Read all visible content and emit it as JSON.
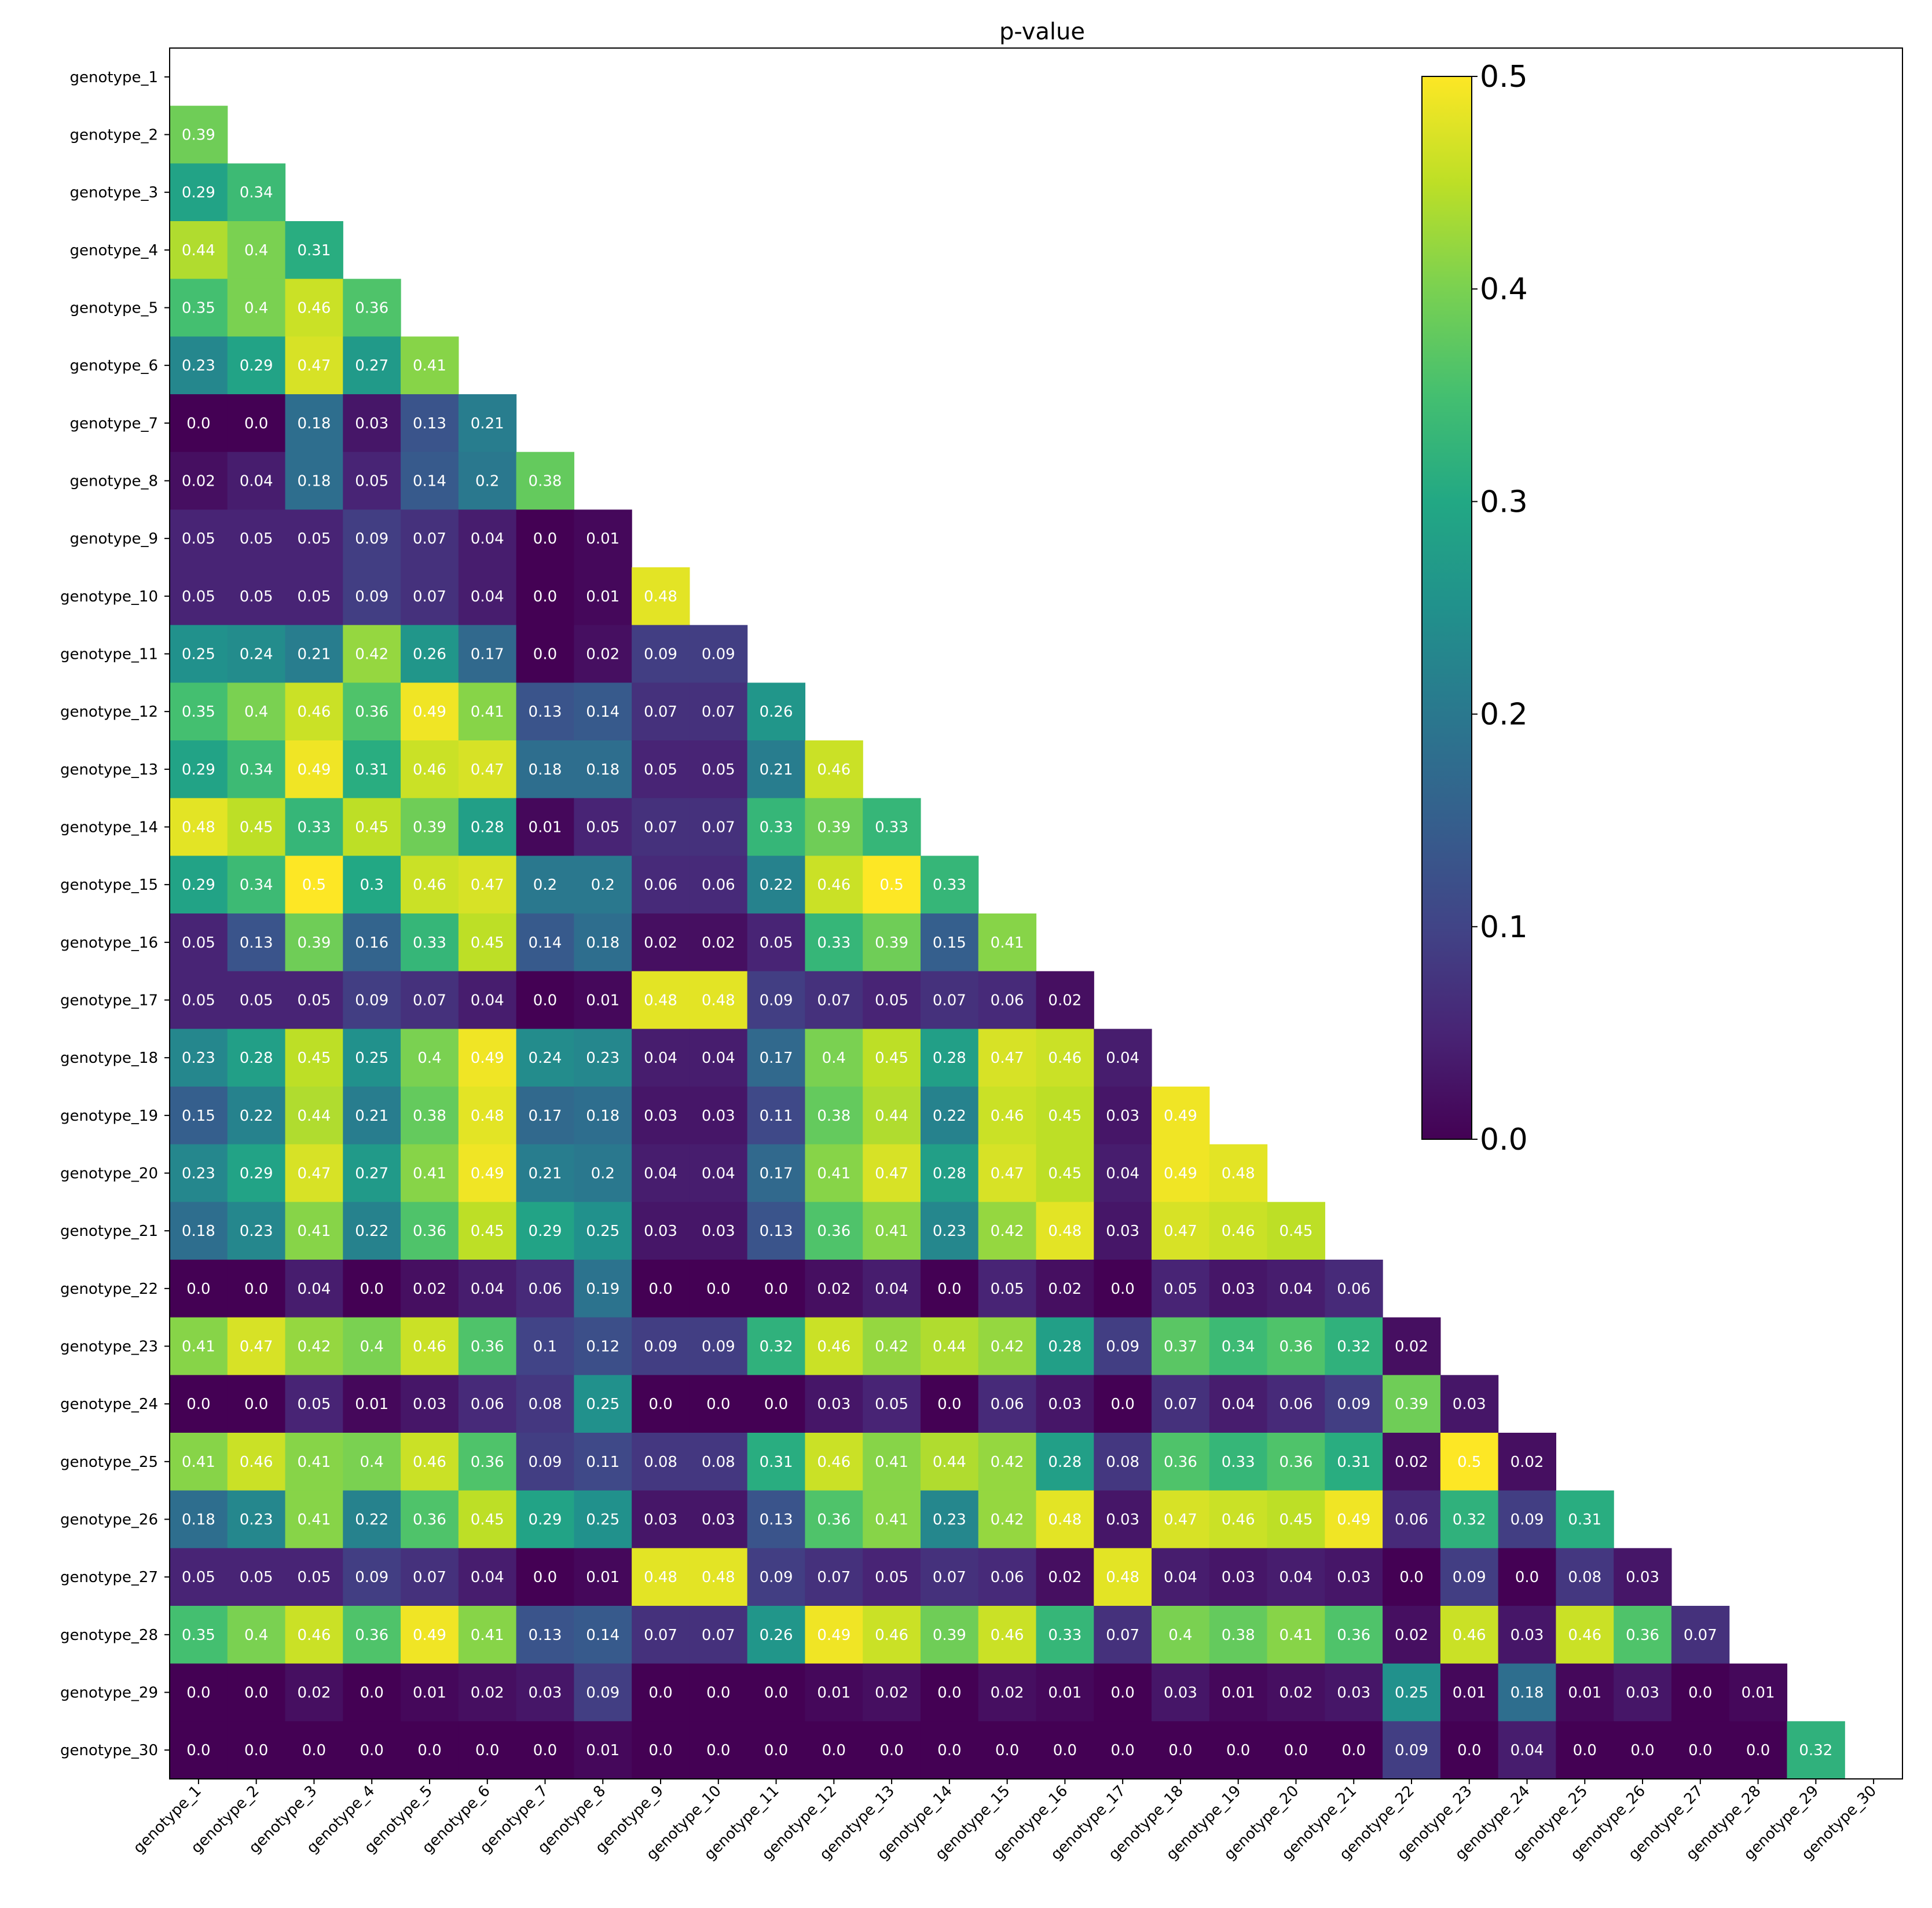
{
  "chart_data": {
    "type": "heatmap",
    "title": "p-value",
    "xlabel": "",
    "ylabel": "",
    "colormap": "viridis",
    "vmin": 0.0,
    "vmax": 0.5,
    "colorbar_ticks": [
      "0.0",
      "0.1",
      "0.2",
      "0.3",
      "0.4",
      "0.5"
    ],
    "colorbar_tick_values": [
      0.0,
      0.1,
      0.2,
      0.3,
      0.4,
      0.5
    ],
    "categories": [
      "genotype_1",
      "genotype_2",
      "genotype_3",
      "genotype_4",
      "genotype_5",
      "genotype_6",
      "genotype_7",
      "genotype_8",
      "genotype_9",
      "genotype_10",
      "genotype_11",
      "genotype_12",
      "genotype_13",
      "genotype_14",
      "genotype_15",
      "genotype_16",
      "genotype_17",
      "genotype_18",
      "genotype_19",
      "genotype_20",
      "genotype_21",
      "genotype_22",
      "genotype_23",
      "genotype_24",
      "genotype_25",
      "genotype_26",
      "genotype_27",
      "genotype_28",
      "genotype_29",
      "genotype_30"
    ],
    "lower_triangle_values": [
      [],
      [
        0.39
      ],
      [
        0.29,
        0.34
      ],
      [
        0.44,
        0.4,
        0.31
      ],
      [
        0.35,
        0.4,
        0.46,
        0.36
      ],
      [
        0.23,
        0.29,
        0.47,
        0.27,
        0.41
      ],
      [
        0.0,
        0.0,
        0.18,
        0.03,
        0.13,
        0.21
      ],
      [
        0.02,
        0.04,
        0.18,
        0.05,
        0.14,
        0.2,
        0.38
      ],
      [
        0.05,
        0.05,
        0.05,
        0.09,
        0.07,
        0.04,
        0.0,
        0.01
      ],
      [
        0.05,
        0.05,
        0.05,
        0.09,
        0.07,
        0.04,
        0.0,
        0.01,
        0.48
      ],
      [
        0.25,
        0.24,
        0.21,
        0.42,
        0.26,
        0.17,
        0.0,
        0.02,
        0.09,
        0.09
      ],
      [
        0.35,
        0.4,
        0.46,
        0.36,
        0.49,
        0.41,
        0.13,
        0.14,
        0.07,
        0.07,
        0.26
      ],
      [
        0.29,
        0.34,
        0.49,
        0.31,
        0.46,
        0.47,
        0.18,
        0.18,
        0.05,
        0.05,
        0.21,
        0.46
      ],
      [
        0.48,
        0.45,
        0.33,
        0.45,
        0.39,
        0.28,
        0.01,
        0.05,
        0.07,
        0.07,
        0.33,
        0.39,
        0.33
      ],
      [
        0.29,
        0.34,
        0.5,
        0.3,
        0.46,
        0.47,
        0.2,
        0.2,
        0.06,
        0.06,
        0.22,
        0.46,
        0.5,
        0.33
      ],
      [
        0.05,
        0.13,
        0.39,
        0.16,
        0.33,
        0.45,
        0.14,
        0.18,
        0.02,
        0.02,
        0.05,
        0.33,
        0.39,
        0.15,
        0.41
      ],
      [
        0.05,
        0.05,
        0.05,
        0.09,
        0.07,
        0.04,
        0.0,
        0.01,
        0.48,
        0.48,
        0.09,
        0.07,
        0.05,
        0.07,
        0.06,
        0.02
      ],
      [
        0.23,
        0.28,
        0.45,
        0.25,
        0.4,
        0.49,
        0.24,
        0.23,
        0.04,
        0.04,
        0.17,
        0.4,
        0.45,
        0.28,
        0.47,
        0.46,
        0.04
      ],
      [
        0.15,
        0.22,
        0.44,
        0.21,
        0.38,
        0.48,
        0.17,
        0.18,
        0.03,
        0.03,
        0.11,
        0.38,
        0.44,
        0.22,
        0.46,
        0.45,
        0.03,
        0.49
      ],
      [
        0.23,
        0.29,
        0.47,
        0.27,
        0.41,
        0.49,
        0.21,
        0.2,
        0.04,
        0.04,
        0.17,
        0.41,
        0.47,
        0.28,
        0.47,
        0.45,
        0.04,
        0.49,
        0.48
      ],
      [
        0.18,
        0.23,
        0.41,
        0.22,
        0.36,
        0.45,
        0.29,
        0.25,
        0.03,
        0.03,
        0.13,
        0.36,
        0.41,
        0.23,
        0.42,
        0.48,
        0.03,
        0.47,
        0.46,
        0.45
      ],
      [
        0.0,
        0.0,
        0.04,
        0.0,
        0.02,
        0.04,
        0.06,
        0.19,
        0.0,
        0.0,
        0.0,
        0.02,
        0.04,
        0.0,
        0.05,
        0.02,
        0.0,
        0.05,
        0.03,
        0.04,
        0.06
      ],
      [
        0.41,
        0.47,
        0.42,
        0.4,
        0.46,
        0.36,
        0.1,
        0.12,
        0.09,
        0.09,
        0.32,
        0.46,
        0.42,
        0.44,
        0.42,
        0.28,
        0.09,
        0.37,
        0.34,
        0.36,
        0.32,
        0.02
      ],
      [
        0.0,
        0.0,
        0.05,
        0.01,
        0.03,
        0.06,
        0.08,
        0.25,
        0.0,
        0.0,
        0.0,
        0.03,
        0.05,
        0.0,
        0.06,
        0.03,
        0.0,
        0.07,
        0.04,
        0.06,
        0.09,
        0.39,
        0.03
      ],
      [
        0.41,
        0.46,
        0.41,
        0.4,
        0.46,
        0.36,
        0.09,
        0.11,
        0.08,
        0.08,
        0.31,
        0.46,
        0.41,
        0.44,
        0.42,
        0.28,
        0.08,
        0.36,
        0.33,
        0.36,
        0.31,
        0.02,
        0.5,
        0.02
      ],
      [
        0.18,
        0.23,
        0.41,
        0.22,
        0.36,
        0.45,
        0.29,
        0.25,
        0.03,
        0.03,
        0.13,
        0.36,
        0.41,
        0.23,
        0.42,
        0.48,
        0.03,
        0.47,
        0.46,
        0.45,
        0.49,
        0.06,
        0.32,
        0.09,
        0.31
      ],
      [
        0.05,
        0.05,
        0.05,
        0.09,
        0.07,
        0.04,
        0.0,
        0.01,
        0.48,
        0.48,
        0.09,
        0.07,
        0.05,
        0.07,
        0.06,
        0.02,
        0.48,
        0.04,
        0.03,
        0.04,
        0.03,
        0.0,
        0.09,
        0.0,
        0.08,
        0.03
      ],
      [
        0.35,
        0.4,
        0.46,
        0.36,
        0.49,
        0.41,
        0.13,
        0.14,
        0.07,
        0.07,
        0.26,
        0.49,
        0.46,
        0.39,
        0.46,
        0.33,
        0.07,
        0.4,
        0.38,
        0.41,
        0.36,
        0.02,
        0.46,
        0.03,
        0.46,
        0.36,
        0.07
      ],
      [
        0.0,
        0.0,
        0.02,
        0.0,
        0.01,
        0.02,
        0.03,
        0.09,
        0.0,
        0.0,
        0.0,
        0.01,
        0.02,
        0.0,
        0.02,
        0.01,
        0.0,
        0.03,
        0.01,
        0.02,
        0.03,
        0.25,
        0.01,
        0.18,
        0.01,
        0.03,
        0.0,
        0.01
      ],
      [
        0.0,
        0.0,
        0.0,
        0.0,
        0.0,
        0.0,
        0.0,
        0.01,
        0.0,
        0.0,
        0.0,
        0.0,
        0.0,
        0.0,
        0.0,
        0.0,
        0.0,
        0.0,
        0.0,
        0.0,
        0.0,
        0.09,
        0.0,
        0.04,
        0.0,
        0.0,
        0.0,
        0.0,
        0.32
      ]
    ]
  }
}
